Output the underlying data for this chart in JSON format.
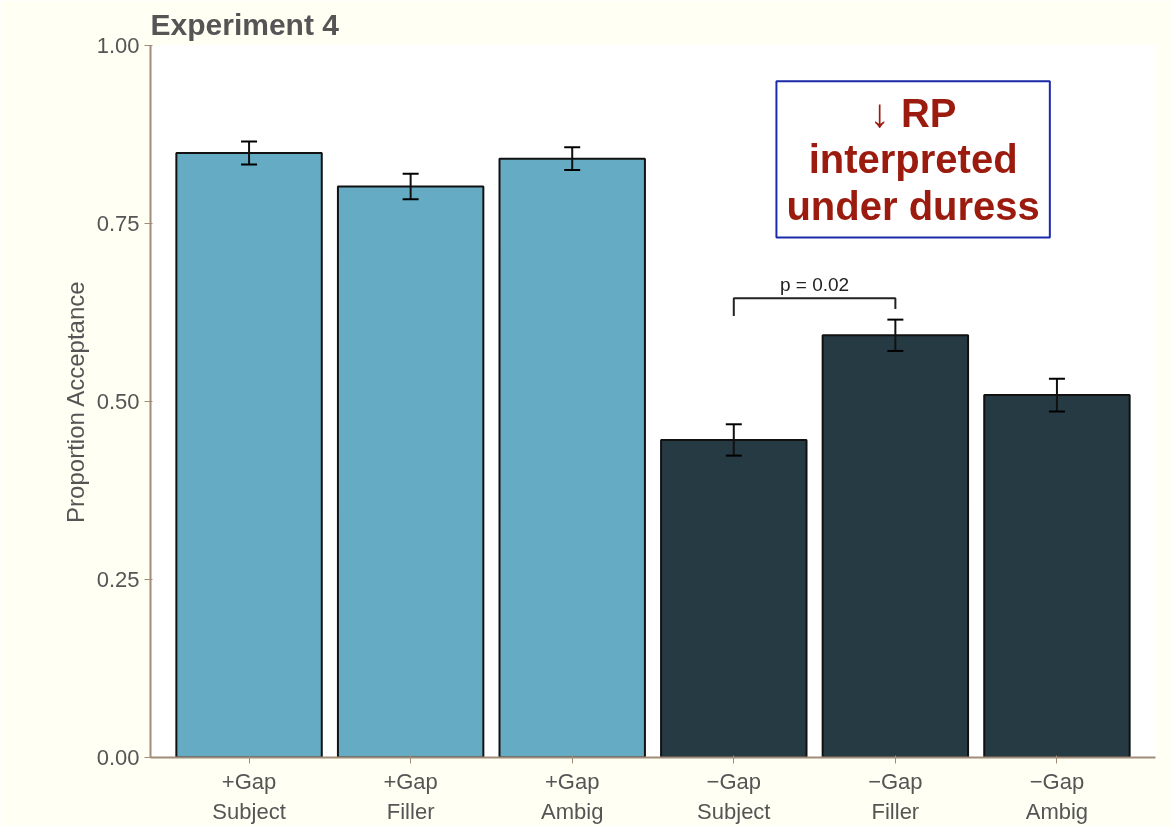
{
  "chart_data": {
    "type": "bar",
    "title": "Experiment 4",
    "ylabel": "Proportion Acceptance",
    "categories": [
      "+Gap\nSubject",
      "+Gap\nFiller",
      "+Gap\nAmbig",
      "−Gap\nSubject",
      "−Gap\nFiller",
      "−Gap\nAmbig"
    ],
    "values": [
      0.849,
      0.802,
      0.841,
      0.446,
      0.593,
      0.509
    ],
    "errors": [
      0.016,
      0.018,
      0.016,
      0.022,
      0.022,
      0.023
    ],
    "colors": [
      "#66abc4",
      "#66abc4",
      "#66abc4",
      "#263a44",
      "#263a44",
      "#263a44"
    ],
    "ylim": [
      0,
      1
    ],
    "yticks": [
      {
        "value": 0,
        "label": "0.00"
      },
      {
        "value": 0.25,
        "label": "0.25"
      },
      {
        "value": 0.5,
        "label": "0.50"
      },
      {
        "value": 0.75,
        "label": "0.75"
      },
      {
        "value": 1,
        "label": "1.00"
      }
    ],
    "grid": false,
    "annotations": [
      "↓ RP\ninterpreted\nunder duress",
      "p = 0.02"
    ]
  }
}
